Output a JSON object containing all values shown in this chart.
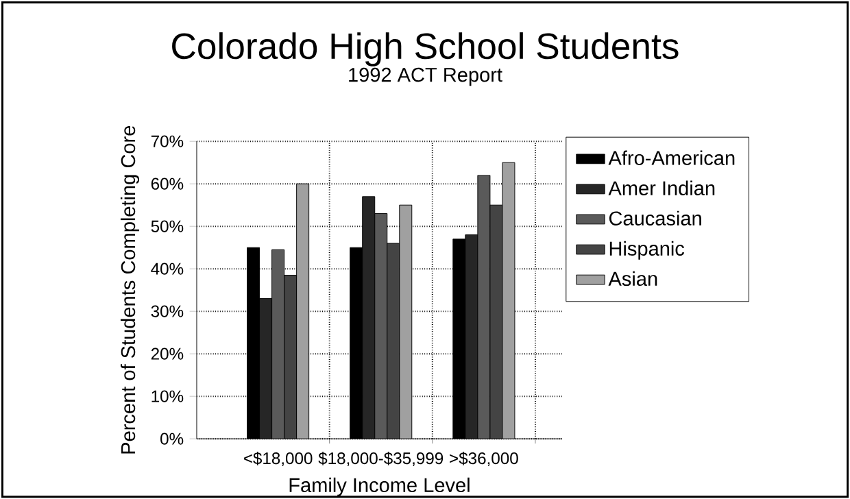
{
  "chart_data": {
    "type": "bar",
    "title": "Colorado High School Students",
    "subtitle": "1992 ACT Report",
    "xlabel": "Family Income Level",
    "ylabel": "Percent of Students Completing Core",
    "categories": [
      "<$18,000",
      "$18,000-$35,999",
      ">$36,000"
    ],
    "series": [
      {
        "name": "Afro-American",
        "color": "#000000",
        "values": [
          45,
          45,
          47
        ]
      },
      {
        "name": "Amer Indian",
        "color": "#262626",
        "values": [
          33,
          57,
          48
        ]
      },
      {
        "name": "Caucasian",
        "color": "#5a5a5a",
        "values": [
          44.5,
          53,
          62
        ]
      },
      {
        "name": "Hispanic",
        "color": "#444444",
        "values": [
          38.5,
          46,
          55
        ]
      },
      {
        "name": "Asian",
        "color": "#a0a0a0",
        "values": [
          60,
          55,
          65
        ]
      }
    ],
    "ylim": [
      0,
      70
    ],
    "yticks": [
      {
        "value": 0,
        "label": "0%"
      },
      {
        "value": 10,
        "label": "10%"
      },
      {
        "value": 20,
        "label": "20%"
      },
      {
        "value": 30,
        "label": "30%"
      },
      {
        "value": 40,
        "label": "40%"
      },
      {
        "value": 50,
        "label": "50%"
      },
      {
        "value": 60,
        "label": "60%"
      },
      {
        "value": 70,
        "label": "70%"
      }
    ],
    "grid": true,
    "legend": "right"
  }
}
